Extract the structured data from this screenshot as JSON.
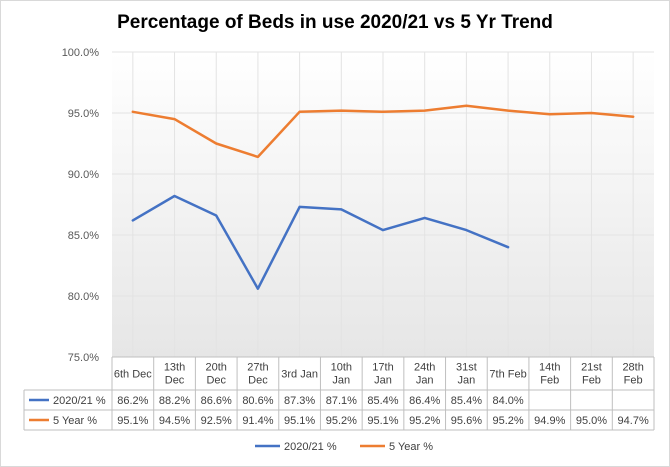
{
  "chart_data": {
    "type": "line",
    "title": "Percentage of Beds in use 2020/21 vs 5 Yr Trend",
    "ylim": [
      75,
      100
    ],
    "yticks": [
      "75.0%",
      "80.0%",
      "85.0%",
      "90.0%",
      "95.0%",
      "100.0%"
    ],
    "categories": [
      [
        "6th Dec"
      ],
      [
        "13th",
        "Dec"
      ],
      [
        "20th",
        "Dec"
      ],
      [
        "27th",
        "Dec"
      ],
      [
        "3rd Jan"
      ],
      [
        "10th",
        "Jan"
      ],
      [
        "17th",
        "Jan"
      ],
      [
        "24th",
        "Jan"
      ],
      [
        "31st",
        "Jan"
      ],
      [
        "7th Feb"
      ],
      [
        "14th",
        "Feb"
      ],
      [
        "21st",
        "Feb"
      ],
      [
        "28th",
        "Feb"
      ]
    ],
    "series": [
      {
        "name": "2020/21 %",
        "color": "#4472c4",
        "values": [
          86.2,
          88.2,
          86.6,
          80.6,
          87.3,
          87.1,
          85.4,
          86.4,
          85.4,
          84.0,
          null,
          null,
          null
        ],
        "labels": [
          "86.2%",
          "88.2%",
          "86.6%",
          "80.6%",
          "87.3%",
          "87.1%",
          "85.4%",
          "86.4%",
          "85.4%",
          "84.0%",
          "",
          "",
          ""
        ]
      },
      {
        "name": "5 Year %",
        "color": "#ed7d31",
        "values": [
          95.1,
          94.5,
          92.5,
          91.4,
          95.1,
          95.2,
          95.1,
          95.2,
          95.6,
          95.2,
          94.9,
          95.0,
          94.7
        ],
        "labels": [
          "95.1%",
          "94.5%",
          "92.5%",
          "91.4%",
          "95.1%",
          "95.2%",
          "95.1%",
          "95.2%",
          "95.6%",
          "95.2%",
          "94.9%",
          "95.0%",
          "94.7%"
        ]
      }
    ],
    "data_table": true,
    "legend": "bottom"
  }
}
